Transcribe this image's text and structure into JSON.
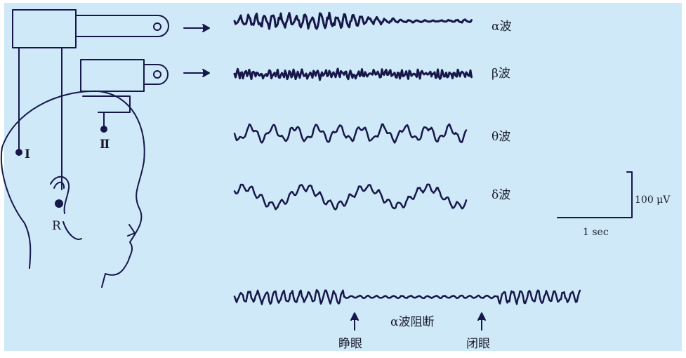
{
  "colors": {
    "background": "#cfe9f8",
    "line": "#17174a",
    "text": "#1a1a2e"
  },
  "waves": {
    "alpha": {
      "label": "α波"
    },
    "beta": {
      "label": "β波"
    },
    "theta": {
      "label": "θ波"
    },
    "delta": {
      "label": "δ波"
    }
  },
  "electrodes": {
    "I": "Ⅰ",
    "II": "Ⅱ",
    "R": "R"
  },
  "scale": {
    "amplitude": "100 μV",
    "time": "1 sec"
  },
  "bottom": {
    "block_label": "α波阻断",
    "open_eyes": "睁眼",
    "close_eyes": "闭眼"
  }
}
